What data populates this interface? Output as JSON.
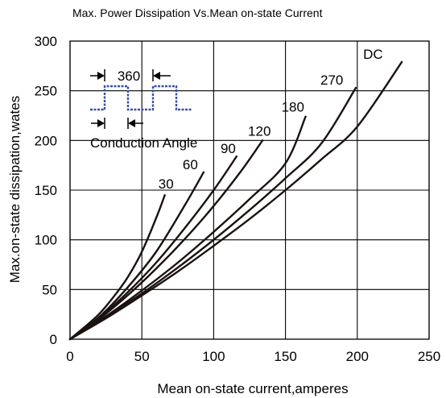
{
  "chart_data": {
    "type": "line",
    "title": "Max. Power Dissipation Vs.Mean on-state Current",
    "xlabel": "Mean on-state current,amperes",
    "ylabel": "Max.on-state dissipation,wates",
    "xlim": [
      0,
      250
    ],
    "ylim": [
      0,
      300
    ],
    "xticks": [
      "0",
      "50",
      "100",
      "150",
      "200",
      "250"
    ],
    "yticks": [
      "0",
      "50",
      "100",
      "150",
      "200",
      "250",
      "300"
    ],
    "grid": true,
    "line_color": "#1a1210",
    "series": [
      {
        "name": "30",
        "x": [
          0,
          10,
          20,
          30,
          40,
          50,
          60,
          66
        ],
        "y": [
          0,
          12,
          25,
          42,
          62,
          88,
          122,
          145
        ]
      },
      {
        "name": "60",
        "x": [
          0,
          20,
          40,
          60,
          80,
          93
        ],
        "y": [
          0,
          22,
          52,
          88,
          135,
          168
        ]
      },
      {
        "name": "90",
        "x": [
          0,
          20,
          40,
          60,
          80,
          100,
          116
        ],
        "y": [
          0,
          21,
          47,
          77,
          112,
          150,
          184
        ]
      },
      {
        "name": "120",
        "x": [
          0,
          20,
          40,
          60,
          80,
          100,
          120,
          134
        ],
        "y": [
          0,
          20,
          44,
          71,
          101,
          134,
          171,
          200
        ]
      },
      {
        "name": "180",
        "x": [
          0,
          25,
          50,
          75,
          100,
          125,
          150,
          164
        ],
        "y": [
          0,
          23,
          49,
          77,
          108,
          141,
          177,
          224
        ]
      },
      {
        "name": "270",
        "x": [
          0,
          25,
          50,
          75,
          100,
          125,
          150,
          175,
          199
        ],
        "y": [
          0,
          22,
          46,
          72,
          100,
          130,
          162,
          197,
          253
        ]
      },
      {
        "name": "DC",
        "x": [
          0,
          25,
          50,
          75,
          100,
          125,
          150,
          175,
          200,
          231
        ],
        "y": [
          0,
          21,
          44,
          68,
          94,
          121,
          150,
          181,
          214,
          279
        ]
      }
    ],
    "inset": {
      "period_label": "360",
      "angle_label": "Conduction Angle",
      "waveform_color": "#3a4fa8"
    }
  }
}
